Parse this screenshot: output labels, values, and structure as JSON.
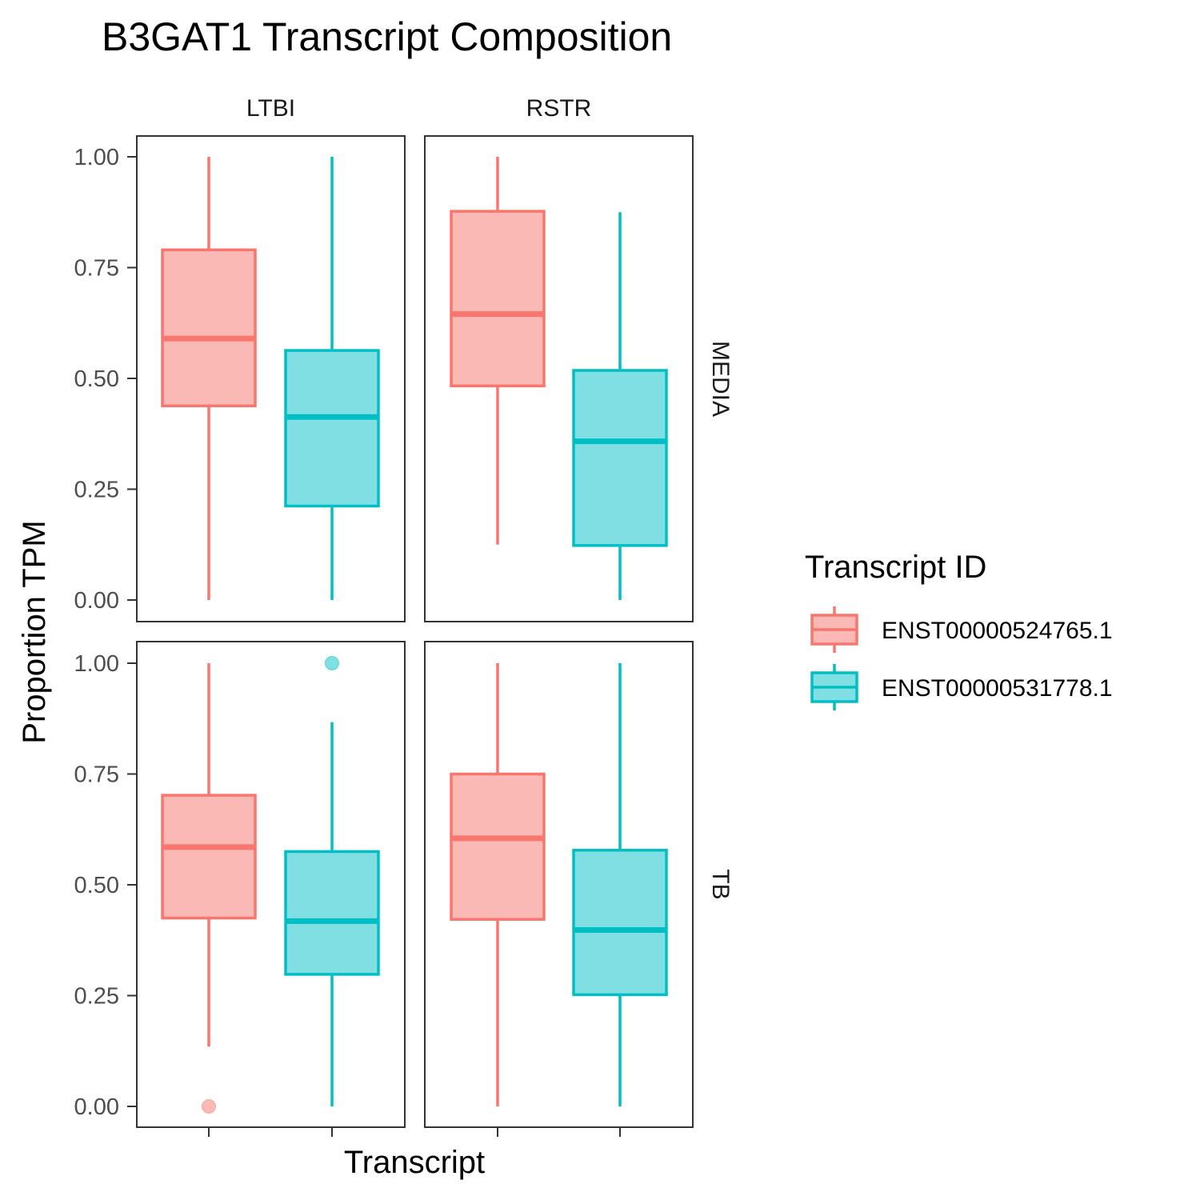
{
  "chart_data": {
    "type": "boxplot",
    "title": "B3GAT1 Transcript Composition",
    "xlabel": "Transcript",
    "ylabel": "Proportion TPM",
    "ylim": [
      0,
      1
    ],
    "yticks": [
      "0.00",
      "0.25",
      "0.50",
      "0.75",
      "1.00"
    ],
    "col_facets": [
      "LTBI",
      "RSTR"
    ],
    "row_facets": [
      "MEDIA",
      "TB"
    ],
    "legend": {
      "title": "Transcript ID",
      "position": "right",
      "entries": [
        {
          "label": "ENST00000524765.1",
          "color": "#F8766D",
          "fill": "#FBB9B6"
        },
        {
          "label": "ENST00000531778.1",
          "color": "#00BFC4",
          "fill": "#80DFE2"
        }
      ]
    },
    "panels": [
      {
        "col": "LTBI",
        "row": "MEDIA",
        "boxes": [
          {
            "series": 0,
            "min": 0.0,
            "q1": 0.438,
            "median": 0.59,
            "q3": 0.79,
            "max": 1.0,
            "outliers": []
          },
          {
            "series": 1,
            "min": 0.0,
            "q1": 0.212,
            "median": 0.413,
            "q3": 0.563,
            "max": 1.0,
            "outliers": []
          }
        ]
      },
      {
        "col": "RSTR",
        "row": "MEDIA",
        "boxes": [
          {
            "series": 0,
            "min": 0.125,
            "q1": 0.483,
            "median": 0.645,
            "q3": 0.877,
            "max": 1.0,
            "outliers": []
          },
          {
            "series": 1,
            "min": 0.0,
            "q1": 0.123,
            "median": 0.358,
            "q3": 0.518,
            "max": 0.875,
            "outliers": []
          }
        ]
      },
      {
        "col": "LTBI",
        "row": "TB",
        "boxes": [
          {
            "series": 0,
            "min": 0.135,
            "q1": 0.425,
            "median": 0.585,
            "q3": 0.702,
            "max": 1.0,
            "outliers": [
              0.0
            ]
          },
          {
            "series": 1,
            "min": 0.0,
            "q1": 0.298,
            "median": 0.418,
            "q3": 0.575,
            "max": 0.867,
            "outliers": [
              1.0
            ]
          }
        ]
      },
      {
        "col": "RSTR",
        "row": "TB",
        "boxes": [
          {
            "series": 0,
            "min": 0.0,
            "q1": 0.422,
            "median": 0.605,
            "q3": 0.75,
            "max": 1.0,
            "outliers": []
          },
          {
            "series": 1,
            "min": 0.0,
            "q1": 0.252,
            "median": 0.398,
            "q3": 0.578,
            "max": 1.0,
            "outliers": []
          }
        ]
      }
    ]
  }
}
